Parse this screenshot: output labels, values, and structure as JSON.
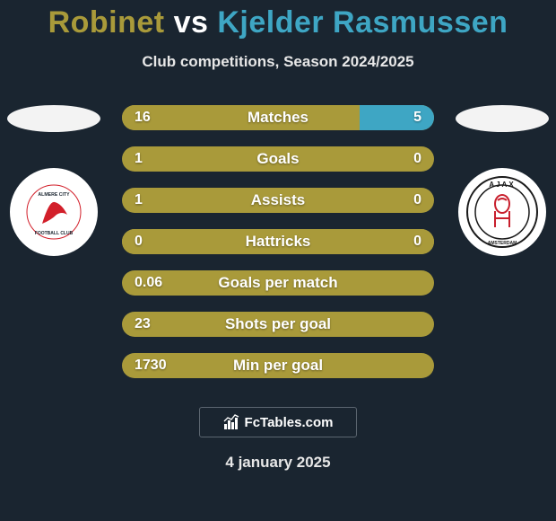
{
  "title": {
    "p1": "Robinet",
    "vs": "vs",
    "p2": "Kjelder Rasmussen",
    "p1_color": "#a99a3a",
    "vs_color": "#ffffff",
    "p2_color": "#3ea6c4",
    "fontsize": 34
  },
  "subtitle": "Club competitions, Season 2024/2025",
  "date": "4 january 2025",
  "background_color": "#1a2530",
  "flag_left": {
    "bg": "#f3f3f3"
  },
  "flag_right": {
    "bg": "#f3f3f3"
  },
  "club_left": {
    "ring": "#d21f2a",
    "inner": "#ffffff",
    "name": "almere-city"
  },
  "club_right": {
    "bg": "#ffffff",
    "accent": "#c81f2d",
    "name": "ajax"
  },
  "bars": {
    "left_color": "#a99a3a",
    "right_color": "#3ea6c4",
    "track_color": "#a99a3a",
    "height": 28,
    "radius": 14,
    "label_fontsize": 17,
    "value_fontsize": 16,
    "rows": [
      {
        "label": "Matches",
        "left_val": "16",
        "right_val": "5",
        "left_pct": 76.2,
        "right_pct": 23.8
      },
      {
        "label": "Goals",
        "left_val": "1",
        "right_val": "0",
        "left_pct": 100,
        "right_pct": 0
      },
      {
        "label": "Assists",
        "left_val": "1",
        "right_val": "0",
        "left_pct": 100,
        "right_pct": 0
      },
      {
        "label": "Hattricks",
        "left_val": "0",
        "right_val": "0",
        "left_pct": 50,
        "right_pct": 50,
        "no_right_fill": true
      },
      {
        "label": "Goals per match",
        "left_val": "0.06",
        "right_val": "",
        "left_pct": 100,
        "right_pct": 0
      },
      {
        "label": "Shots per goal",
        "left_val": "23",
        "right_val": "",
        "left_pct": 100,
        "right_pct": 0
      },
      {
        "label": "Min per goal",
        "left_val": "1730",
        "right_val": "",
        "left_pct": 100,
        "right_pct": 0
      }
    ]
  },
  "branding": "FcTables.com"
}
